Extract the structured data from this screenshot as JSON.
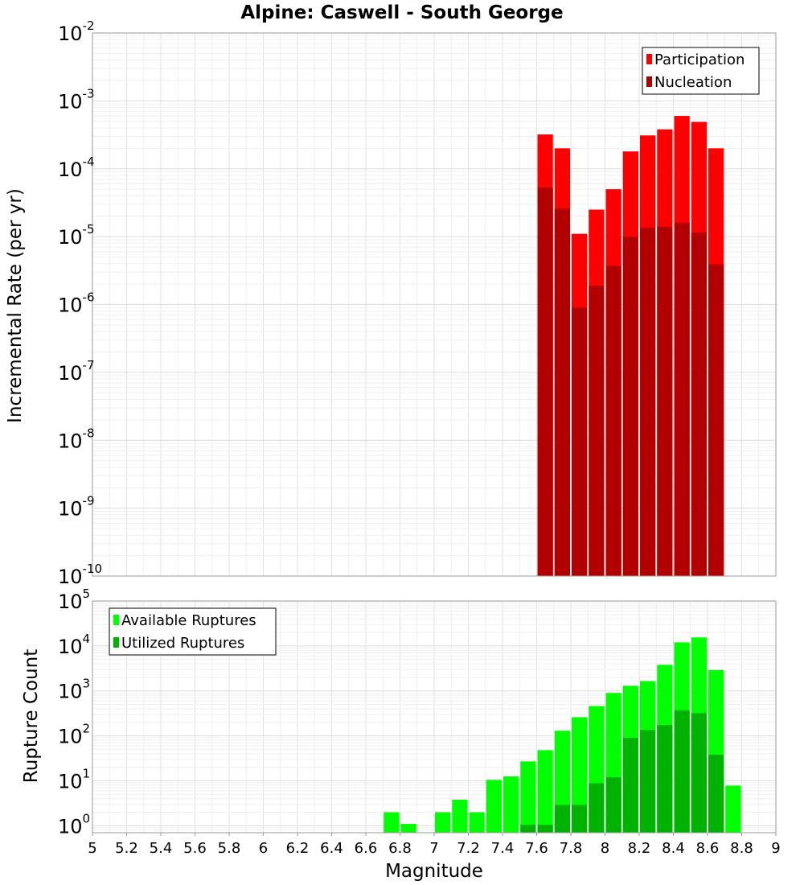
{
  "chart_data": [
    {
      "type": "bar",
      "title": "Alpine: Caswell - South George",
      "xlabel": "",
      "ylabel": "Incremental Rate (per yr)",
      "xlim": [
        5,
        9
      ],
      "ylim": [
        1e-10,
        0.01
      ],
      "yscale": "log",
      "grid": true,
      "legend_position": "top-right",
      "bar_width": 0.1,
      "y_tick_exponents": [
        "-10",
        "-9",
        "-8",
        "-7",
        "-6",
        "-5",
        "-4",
        "-3",
        "-2"
      ],
      "y_tick_base": "10",
      "series": [
        {
          "name": "Participation",
          "color": "#ff0000",
          "x": [
            7.65,
            7.75,
            7.85,
            7.95,
            8.05,
            8.15,
            8.25,
            8.35,
            8.45,
            8.55,
            8.65
          ],
          "values": [
            0.00032,
            0.0002,
            1.1e-05,
            2.5e-05,
            5e-05,
            0.00018,
            0.00031,
            0.00038,
            0.0006,
            0.00049,
            0.0002
          ]
        },
        {
          "name": "Nucleation",
          "color": "#b20000",
          "x": [
            7.65,
            7.75,
            7.85,
            7.95,
            8.05,
            8.15,
            8.25,
            8.35,
            8.45,
            8.55,
            8.65
          ],
          "values": [
            5.3e-05,
            2.6e-05,
            9e-07,
            1.9e-06,
            3.7e-06,
            1e-05,
            1.35e-05,
            1.4e-05,
            1.6e-05,
            1.15e-05,
            3.9e-06
          ]
        }
      ]
    },
    {
      "type": "bar",
      "title": "",
      "xlabel": "Magnitude",
      "ylabel": "Rupture Count",
      "xlim": [
        5,
        9
      ],
      "ylim": [
        0.7,
        100000.0
      ],
      "yscale": "log",
      "grid": true,
      "legend_position": "top-left",
      "bar_width": 0.1,
      "x_tick_labels": [
        "5",
        "5.2",
        "5.4",
        "5.6",
        "5.8",
        "6",
        "6.2",
        "6.4",
        "6.6",
        "6.8",
        "7",
        "7.2",
        "7.4",
        "7.6",
        "7.8",
        "8",
        "8.2",
        "8.4",
        "8.6",
        "8.8",
        "9"
      ],
      "y_tick_exponents": [
        "0",
        "1",
        "2",
        "3",
        "4",
        "5"
      ],
      "y_tick_base": "10",
      "series": [
        {
          "name": "Available Ruptures",
          "color": "#00ff00",
          "x": [
            6.75,
            6.85,
            7.05,
            7.15,
            7.25,
            7.35,
            7.45,
            7.55,
            7.65,
            7.75,
            7.85,
            7.95,
            8.05,
            8.15,
            8.25,
            8.35,
            8.45,
            8.55,
            8.65,
            8.75
          ],
          "values": [
            2,
            1.1,
            2,
            3.8,
            2,
            10.5,
            12.5,
            27,
            48,
            130,
            260,
            460,
            900,
            1300,
            1650,
            3800,
            12000,
            15500,
            2900,
            7.8
          ]
        },
        {
          "name": "Utilized Ruptures",
          "color": "#00b200",
          "x": [
            7.55,
            7.65,
            7.75,
            7.85,
            7.95,
            8.05,
            8.15,
            8.25,
            8.35,
            8.45,
            8.55,
            8.65
          ],
          "values": [
            1.05,
            1.05,
            2.9,
            2.9,
            8.8,
            12,
            90,
            135,
            175,
            370,
            320,
            38
          ]
        }
      ]
    }
  ]
}
